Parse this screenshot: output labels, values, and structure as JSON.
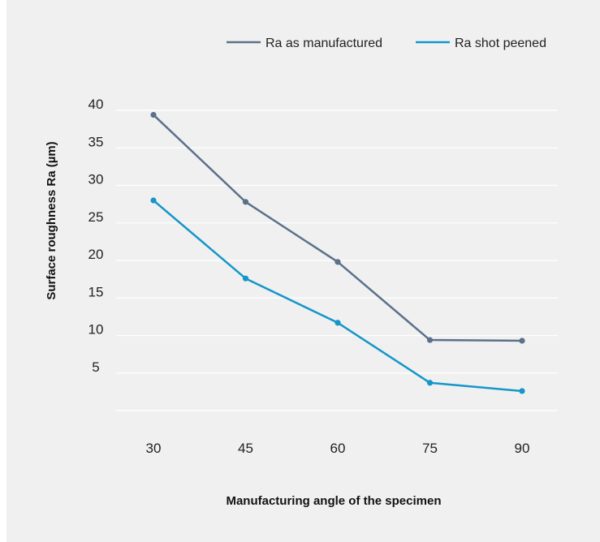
{
  "chart_data": {
    "type": "line",
    "title": "",
    "xlabel": "Manufacturing angle of the specimen",
    "ylabel": "Surface roughness Ra (µm)",
    "x": [
      30,
      45,
      60,
      75,
      90
    ],
    "x_tick_labels": [
      "30",
      "45",
      "60",
      "75",
      "90"
    ],
    "y_tick_labels": [
      "5",
      "10",
      "15",
      "20",
      "25",
      "30",
      "35",
      "40"
    ],
    "y_ticks": [
      5,
      10,
      15,
      20,
      25,
      30,
      35,
      40
    ],
    "ylim": [
      0,
      40
    ],
    "grid": "horizontal",
    "legend_position": "top-right",
    "series": [
      {
        "name": "Ra as manufactured",
        "color": "#5a7189",
        "values": [
          39.4,
          27.8,
          19.8,
          9.4,
          9.3
        ]
      },
      {
        "name": "Ra shot peened",
        "color": "#1596c9",
        "values": [
          28.0,
          17.6,
          11.7,
          3.7,
          2.6
        ]
      }
    ]
  }
}
